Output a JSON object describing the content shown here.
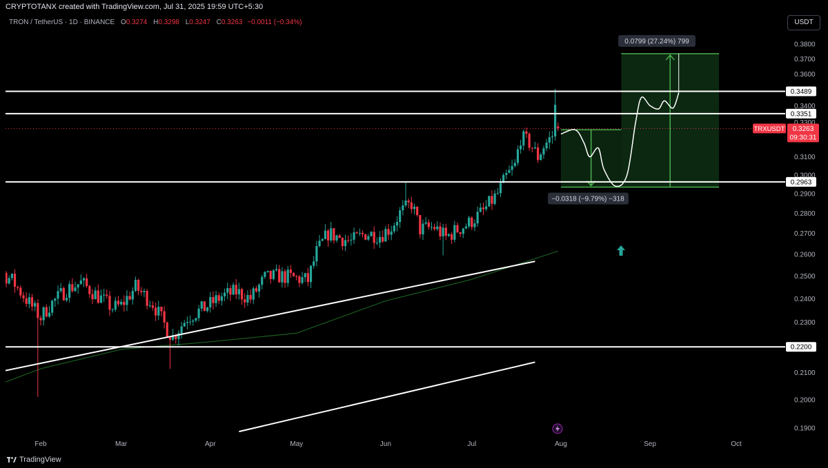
{
  "header": {
    "credit": "CRYPTOTANX created with TradingView.com, Jul 31, 2025 19:59 UTC+5:30"
  },
  "legend": {
    "symbol": "TRON / TetherUS · 1D · BINANCE",
    "open_label": "O",
    "open": "0.3274",
    "high_label": "H",
    "high": "0.3298",
    "low_label": "L",
    "low": "0.3247",
    "close_label": "C",
    "close": "0.3263",
    "change": "−0.0011 (−0.34%)"
  },
  "currency_button": "USDT",
  "footer": {
    "brand": "TradingView"
  },
  "colors": {
    "up": "#26a69a",
    "down": "#f23645",
    "ma": "#1b5e20",
    "level": "#ffffff",
    "projection": "#4caf50",
    "projection_fill": "#0d2a12"
  },
  "chart_data": {
    "type": "candlestick",
    "title": "TRON / TetherUS · 1D · BINANCE",
    "y_axis": {
      "scale": "log",
      "ylim": [
        0.1865,
        0.3895
      ],
      "ticks": [
        "0.3800",
        "0.3700",
        "0.3600",
        "0.3500",
        "0.3400",
        "0.3300",
        "0.3200",
        "0.3100",
        "0.3000",
        "0.2900",
        "0.2800",
        "0.2700",
        "0.2600",
        "0.2500",
        "0.2400",
        "0.2300",
        "0.2200",
        "0.2100",
        "0.2000",
        "0.1900"
      ]
    },
    "x_axis": {
      "ticks": [
        {
          "label": "Feb",
          "date": "2025-02-01"
        },
        {
          "label": "Mar",
          "date": "2025-03-01"
        },
        {
          "label": "Apr",
          "date": "2025-04-01"
        },
        {
          "label": "May",
          "date": "2025-05-01"
        },
        {
          "label": "Jun",
          "date": "2025-06-01"
        },
        {
          "label": "Jul",
          "date": "2025-07-01"
        },
        {
          "label": "Aug",
          "date": "2025-08-01"
        },
        {
          "label": "Sep",
          "date": "2025-09-01"
        },
        {
          "label": "Oct",
          "date": "2025-10-01"
        }
      ]
    },
    "close_anchors": [
      [
        "2025-01-06",
        0.245
      ],
      [
        "2025-01-10",
        0.25
      ],
      [
        "2025-01-15",
        0.255
      ],
      [
        "2025-01-22",
        0.248
      ],
      [
        "2025-01-28",
        0.238
      ],
      [
        "2025-02-01",
        0.232
      ],
      [
        "2025-02-04",
        0.237
      ],
      [
        "2025-02-10",
        0.244
      ],
      [
        "2025-02-15",
        0.247
      ],
      [
        "2025-02-20",
        0.242
      ],
      [
        "2025-02-26",
        0.236
      ],
      [
        "2025-03-01",
        0.237
      ],
      [
        "2025-03-06",
        0.245
      ],
      [
        "2025-03-12",
        0.238
      ],
      [
        "2025-03-17",
        0.227
      ],
      [
        "2025-03-19",
        0.224
      ],
      [
        "2025-03-24",
        0.232
      ],
      [
        "2025-03-30",
        0.236
      ],
      [
        "2025-04-05",
        0.241
      ],
      [
        "2025-04-10",
        0.243
      ],
      [
        "2025-04-15",
        0.24
      ],
      [
        "2025-04-20",
        0.249
      ],
      [
        "2025-04-25",
        0.25
      ],
      [
        "2025-05-01",
        0.249
      ],
      [
        "2025-05-05",
        0.248
      ],
      [
        "2025-05-08",
        0.261
      ],
      [
        "2025-05-12",
        0.27
      ],
      [
        "2025-05-16",
        0.268
      ],
      [
        "2025-05-20",
        0.266
      ],
      [
        "2025-05-25",
        0.27
      ],
      [
        "2025-05-30",
        0.269
      ],
      [
        "2025-06-03",
        0.273
      ],
      [
        "2025-06-06",
        0.28
      ],
      [
        "2025-06-10",
        0.285
      ],
      [
        "2025-06-13",
        0.272
      ],
      [
        "2025-06-18",
        0.273
      ],
      [
        "2025-06-22",
        0.268
      ],
      [
        "2025-06-25",
        0.271
      ],
      [
        "2025-06-30",
        0.275
      ],
      [
        "2025-07-05",
        0.281
      ],
      [
        "2025-07-10",
        0.29
      ],
      [
        "2025-07-13",
        0.299
      ],
      [
        "2025-07-16",
        0.305
      ],
      [
        "2025-07-18",
        0.321
      ],
      [
        "2025-07-21",
        0.318
      ],
      [
        "2025-07-24",
        0.31
      ],
      [
        "2025-07-26",
        0.316
      ],
      [
        "2025-07-29",
        0.322
      ],
      [
        "2025-07-30",
        0.339
      ],
      [
        "2025-07-31",
        0.3263
      ]
    ],
    "last_candle": {
      "date": "2025-07-31",
      "open": 0.3274,
      "high": 0.3298,
      "low": 0.3247,
      "close": 0.3263
    },
    "moving_average": [
      [
        "2025-01-01",
        0.199
      ],
      [
        "2025-02-01",
        0.2115
      ],
      [
        "2025-03-01",
        0.219
      ],
      [
        "2025-04-01",
        0.222
      ],
      [
        "2025-05-01",
        0.2255
      ],
      [
        "2025-06-01",
        0.239
      ],
      [
        "2025-07-01",
        0.2485
      ],
      [
        "2025-07-31",
        0.2615
      ]
    ],
    "horizontal_levels": [
      0.3489,
      0.3351,
      0.2963,
      0.22
    ],
    "price_labels": [
      {
        "text": "0.3489",
        "value": 0.3489
      },
      {
        "text": "0.3351",
        "value": 0.3351
      },
      {
        "text": "0.2963",
        "value": 0.2963
      },
      {
        "text": "0.2200",
        "value": 0.22
      }
    ],
    "current_price": {
      "symbol": "TRXUSDT",
      "price": "0.3263",
      "value": 0.3263,
      "countdown": "09:30:31"
    },
    "trendlines": [
      {
        "from": [
          "2025-01-01",
          0.2066
        ],
        "to": [
          "2025-07-23",
          0.2567
        ]
      },
      {
        "from": [
          "2025-04-11",
          0.1888
        ],
        "to": [
          "2025-07-23",
          0.214
        ]
      }
    ],
    "projection": {
      "stop_box": {
        "from_date": "2025-08-01",
        "to_date": "2025-08-22",
        "top": 0.3255,
        "bottom": 0.2935
      },
      "target_box": {
        "from_date": "2025-08-22",
        "to_date": "2025-09-25",
        "top": 0.3734,
        "bottom": 0.2935
      },
      "stop_label": "−0.0318 (−9.79%) −318",
      "target_label": "0.0799 (27.24%) 799",
      "path": [
        [
          "2025-08-01",
          0.323
        ],
        [
          "2025-08-06",
          0.3255
        ],
        [
          "2025-08-09",
          0.318
        ],
        [
          "2025-08-11",
          0.31
        ],
        [
          "2025-08-14",
          0.315
        ],
        [
          "2025-08-16",
          0.303
        ],
        [
          "2025-08-20",
          0.294
        ],
        [
          "2025-08-24",
          0.3
        ],
        [
          "2025-08-27",
          0.33
        ],
        [
          "2025-08-29",
          0.345
        ],
        [
          "2025-09-01",
          0.34
        ],
        [
          "2025-09-04",
          0.338
        ],
        [
          "2025-09-06",
          0.343
        ],
        [
          "2025-09-09",
          0.3385
        ],
        [
          "2025-09-11",
          0.348
        ]
      ]
    }
  }
}
